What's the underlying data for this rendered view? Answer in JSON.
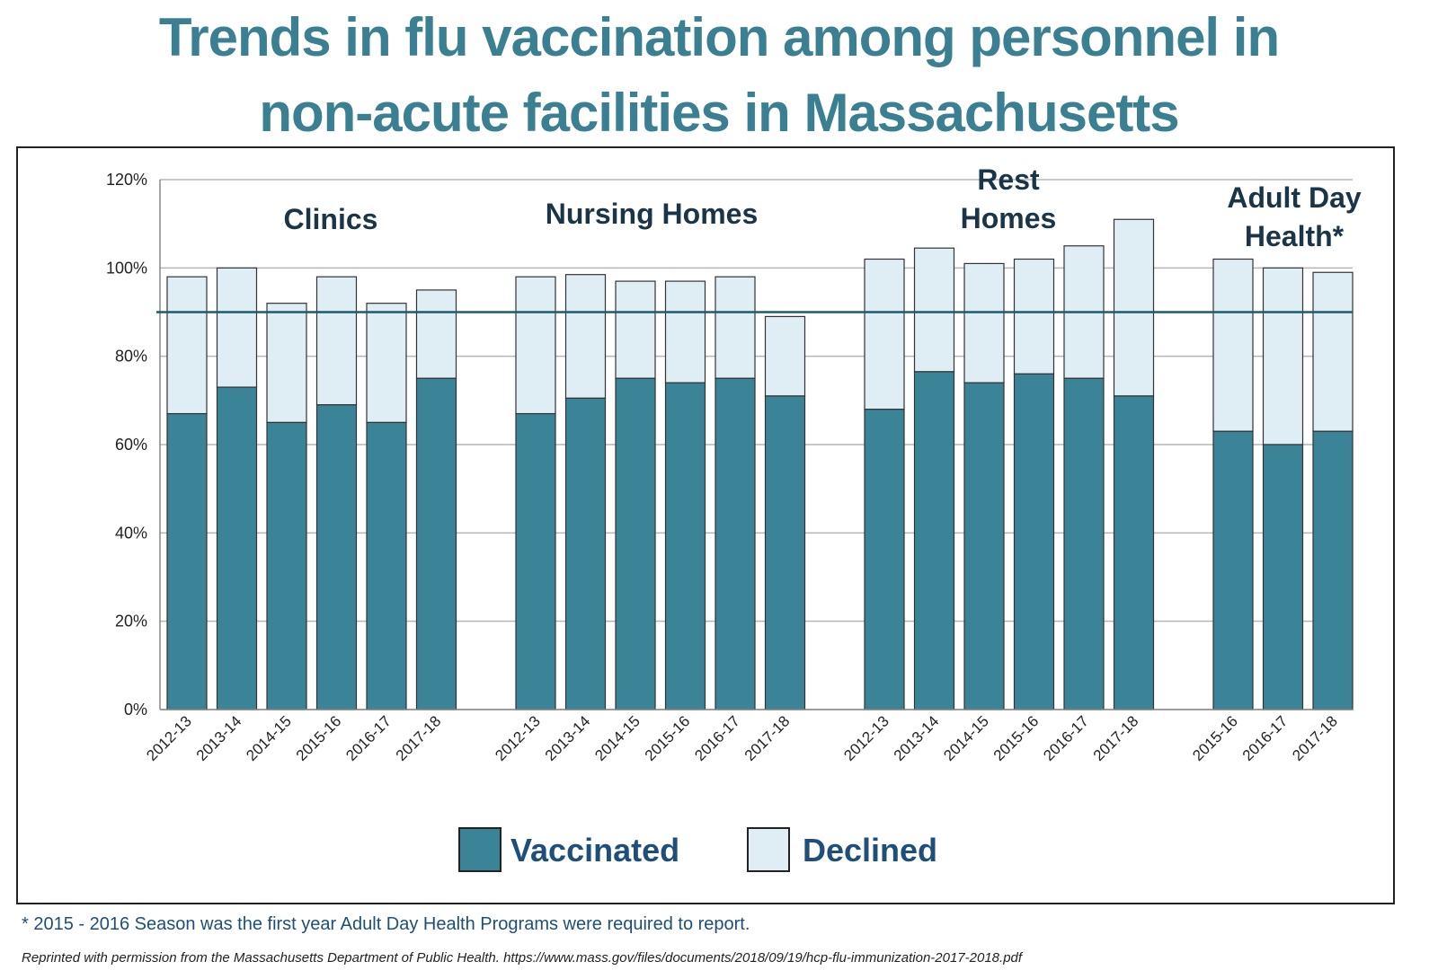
{
  "title_lines": [
    "Trends in flu vaccination among personnel in",
    "non-acute facilities in Massachusetts"
  ],
  "colors": {
    "vaccinated": "#3b8498",
    "declined": "#dfeef4",
    "reference_line": "#1f5a70",
    "title": "#3b7f92",
    "legend_text": "#1d4f7a"
  },
  "chart_data": {
    "type": "bar",
    "stacked": true,
    "ylim": [
      0,
      120
    ],
    "yticks": [
      "0%",
      "20%",
      "40%",
      "60%",
      "80%",
      "100%",
      "120%"
    ],
    "ytick_values": [
      0,
      20,
      40,
      60,
      80,
      100,
      120
    ],
    "reference_line": 90,
    "groups": [
      {
        "name_lines": [
          "Clinics"
        ],
        "categories": [
          "2012-13",
          "2013-14",
          "2014-15",
          "2015-16",
          "2016-17",
          "2017-18"
        ],
        "vaccinated": [
          67,
          73,
          65,
          69,
          65,
          75
        ],
        "declined": [
          31,
          27,
          27,
          29,
          27,
          20
        ]
      },
      {
        "name_lines": [
          "Nursing Homes"
        ],
        "categories": [
          "2012-13",
          "2013-14",
          "2014-15",
          "2015-16",
          "2016-17",
          "2017-18"
        ],
        "vaccinated": [
          67,
          70.5,
          75,
          74,
          75,
          71
        ],
        "declined": [
          31,
          28,
          22,
          23,
          23,
          18
        ]
      },
      {
        "name_lines": [
          "Rest",
          "Homes"
        ],
        "categories": [
          "2012-13",
          "2013-14",
          "2014-15",
          "2015-16",
          "2016-17",
          "2017-18"
        ],
        "vaccinated": [
          68,
          76.5,
          74,
          76,
          75,
          71
        ],
        "declined": [
          34,
          28,
          27,
          26,
          30,
          40
        ]
      },
      {
        "name_lines": [
          "Adult Day",
          "Health*"
        ],
        "categories": [
          "2015-16",
          "2016-17",
          "2017-18"
        ],
        "vaccinated": [
          63,
          60,
          63
        ],
        "declined": [
          39,
          40,
          36
        ]
      }
    ],
    "legend": [
      {
        "key": "vaccinated",
        "label": "Vaccinated"
      },
      {
        "key": "declined",
        "label": "Declined"
      }
    ]
  },
  "footnote": "* 2015 - 2016 Season was the first year Adult Day Health Programs were required to report.",
  "credit": "Reprinted with permission from the Massachusetts Department of Public Health. https://www.mass.gov/files/documents/2018/09/19/hcp-flu-immunization-2017-2018.pdf"
}
